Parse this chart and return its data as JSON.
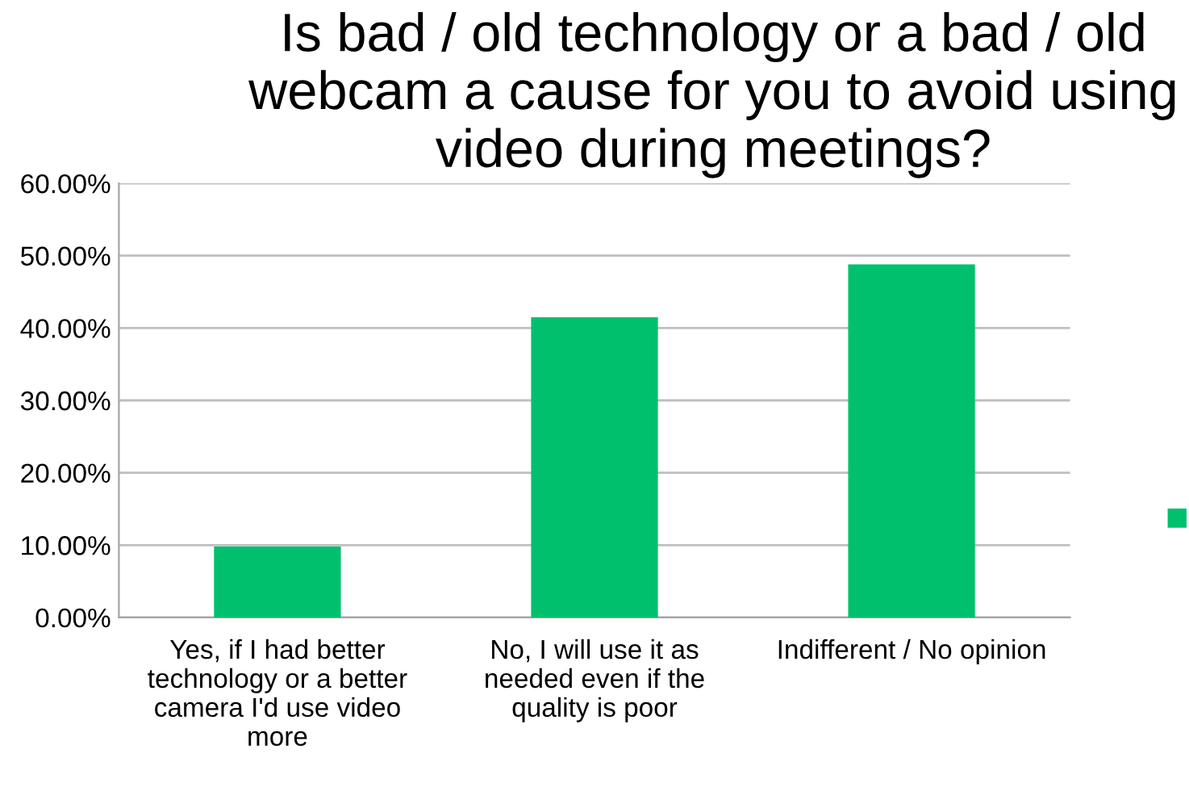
{
  "chart_data": {
    "type": "bar",
    "title": "Is bad / old technology or a bad / old webcam a cause for you to avoid using video during meetings?",
    "categories": [
      "Yes, if I had better technology or a better camera I'd use video more",
      "No, I will use it as needed even if the quality is poor",
      "Indifferent / No opinion"
    ],
    "series": [
      {
        "color": "#00c06e",
        "values": [
          9.8,
          41.5,
          48.8
        ]
      }
    ],
    "ylim": [
      0,
      60
    ],
    "yticks": [
      {
        "value": 0,
        "label": "0.00%"
      },
      {
        "value": 10,
        "label": "10.00%"
      },
      {
        "value": 20,
        "label": "20.00%"
      },
      {
        "value": 30,
        "label": "30.00%"
      },
      {
        "value": 40,
        "label": "40.00%"
      },
      {
        "value": 50,
        "label": "50.00%"
      },
      {
        "value": 60,
        "label": "60.00%"
      }
    ],
    "grid": "y"
  }
}
